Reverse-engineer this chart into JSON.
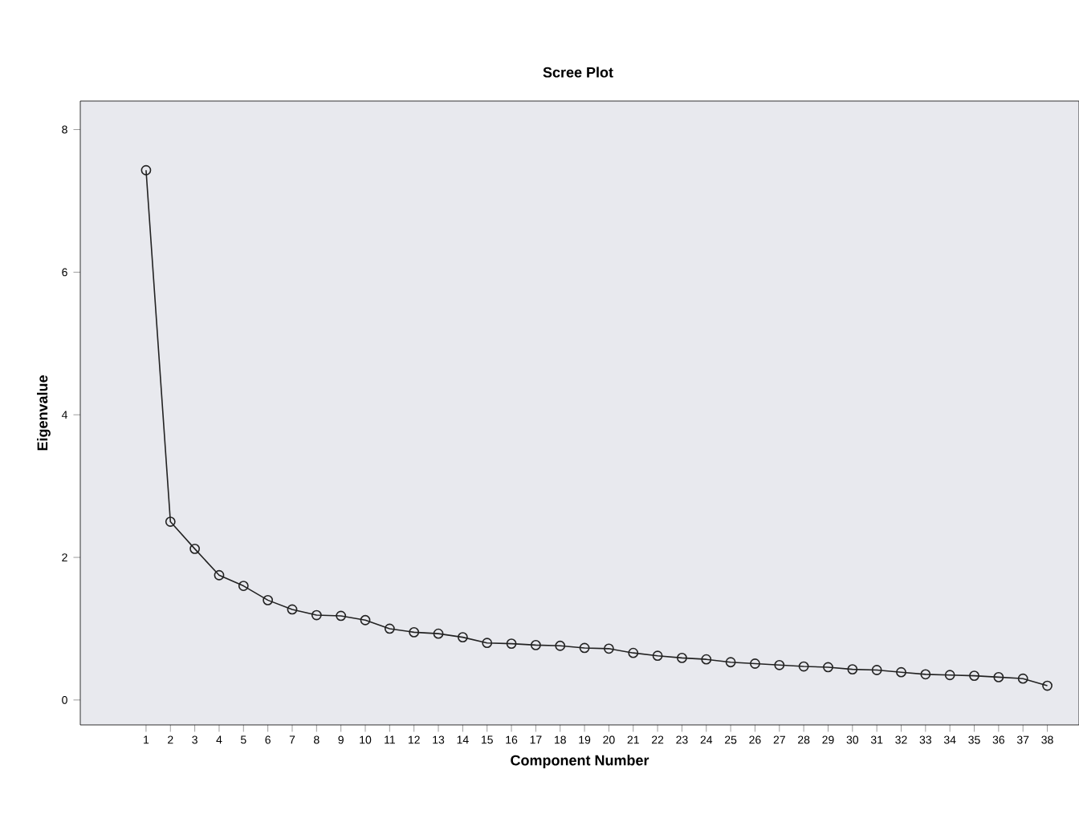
{
  "chart_data": {
    "type": "line",
    "title": "Scree Plot",
    "xlabel": "Component Number",
    "ylabel": "Eigenvalue",
    "categories": [
      "1",
      "2",
      "3",
      "4",
      "5",
      "6",
      "7",
      "8",
      "9",
      "10",
      "11",
      "12",
      "13",
      "14",
      "15",
      "16",
      "17",
      "18",
      "19",
      "20",
      "21",
      "22",
      "23",
      "24",
      "25",
      "26",
      "27",
      "28",
      "29",
      "30",
      "31",
      "32",
      "33",
      "34",
      "35",
      "36",
      "37",
      "38"
    ],
    "values": [
      7.43,
      2.5,
      2.12,
      1.75,
      1.6,
      1.4,
      1.27,
      1.19,
      1.18,
      1.12,
      1.0,
      0.95,
      0.93,
      0.88,
      0.8,
      0.79,
      0.77,
      0.76,
      0.73,
      0.72,
      0.66,
      0.62,
      0.59,
      0.57,
      0.53,
      0.51,
      0.49,
      0.47,
      0.46,
      0.43,
      0.42,
      0.39,
      0.36,
      0.35,
      0.34,
      0.32,
      0.3,
      0.2
    ],
    "color": "#222222",
    "marker": "circle",
    "line_style": "solid",
    "grid": false,
    "ylim": [
      -0.35,
      8.4
    ],
    "yticks": [
      0,
      2,
      4,
      6,
      8
    ]
  }
}
